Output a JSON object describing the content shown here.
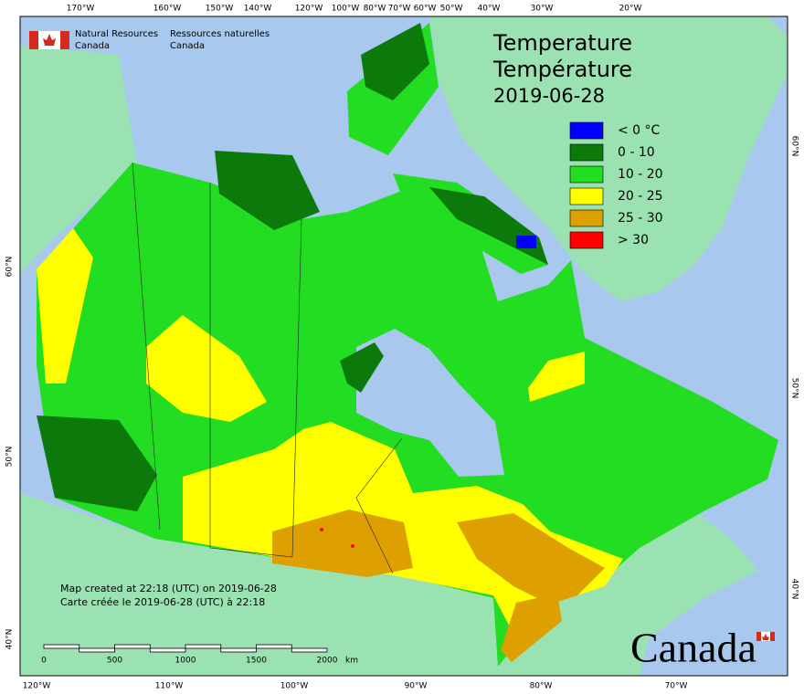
{
  "header": {
    "org_en": [
      "Natural Resources",
      "Canada"
    ],
    "org_fr": [
      "Ressources naturelles",
      "Canada"
    ]
  },
  "title": {
    "en": "Temperature",
    "fr": "Température",
    "date": "2019-06-28"
  },
  "legend": [
    {
      "label": "< 0 °C",
      "color": "#0000ff"
    },
    {
      "label": "0 - 10",
      "color": "#0b7a0b"
    },
    {
      "label": "10 - 20",
      "color": "#22dd22"
    },
    {
      "label": "20 - 25",
      "color": "#ffff00"
    },
    {
      "label": "25 - 30",
      "color": "#dda000"
    },
    {
      "label": "> 30",
      "color": "#ff0000"
    }
  ],
  "graticule": {
    "top": [
      "170°W",
      "160°W",
      "150°W",
      "140°W",
      "120°W",
      "100°W",
      "80°W",
      "70°W",
      "60°W",
      "50°W",
      "40°W",
      "30°W",
      "20°W"
    ],
    "bottom": [
      "120°W",
      "110°W",
      "100°W",
      "90°W",
      "80°W",
      "70°W"
    ],
    "left": [
      "60°N",
      "50°N",
      "40°N"
    ],
    "right": [
      "60°N",
      "50°N",
      "40°N"
    ]
  },
  "credits": [
    "Map created at 22:18 (UTC) on 2019-06-28",
    "Carte créée le 2019-06-28 (UTC) à 22:18"
  ],
  "scale": {
    "ticks": [
      "0",
      "500",
      "1000",
      "1500",
      "2000"
    ],
    "unit": "km"
  },
  "wordmark": "Canada"
}
